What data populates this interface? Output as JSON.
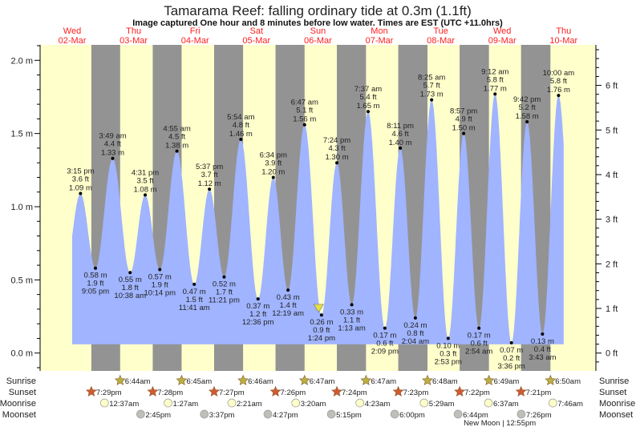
{
  "chart_data": {
    "type": "area",
    "title": "Tamarama Reef: falling  ordinary tide at 0.3m (1.1ft)",
    "subtitle": "Image captured One hour and 8 minutes before low water. Times are EST (UTC +11.0hrs)",
    "days": [
      {
        "dow": "Wed",
        "date": "02-Mar"
      },
      {
        "dow": "Thu",
        "date": "03-Mar"
      },
      {
        "dow": "Fri",
        "date": "04-Mar"
      },
      {
        "dow": "Sat",
        "date": "05-Mar"
      },
      {
        "dow": "Sun",
        "date": "06-Mar"
      },
      {
        "dow": "Mon",
        "date": "07-Mar"
      },
      {
        "dow": "Tue",
        "date": "08-Mar"
      },
      {
        "dow": "Wed",
        "date": "09-Mar"
      },
      {
        "dow": "Thu",
        "date": "10-Mar"
      }
    ],
    "y_axis_left": {
      "unit": "m",
      "ticks": [
        "0.0 m",
        "0.5 m",
        "1.0 m",
        "1.5 m",
        "2.0 m"
      ],
      "range": [
        -0.1,
        2.1
      ]
    },
    "y_axis_right": {
      "unit": "ft",
      "ticks": [
        "0 ft",
        "1 ft",
        "2 ft",
        "3 ft",
        "4 ft",
        "5 ft",
        "6 ft"
      ]
    },
    "curve_start": {
      "date": "02-Mar",
      "time": "12:00 pm",
      "m": 0.8
    },
    "curve_end": {
      "date": "10-Mar",
      "time": "12:00 pm",
      "m": 1.42
    },
    "curve_floor_m": 0.06,
    "extremes": [
      {
        "type": "high",
        "date": "02-Mar",
        "time": "3:15 pm",
        "ft": "3.6 ft",
        "m": 1.09
      },
      {
        "type": "low",
        "date": "02-Mar",
        "time": "9:05 pm",
        "ft": "1.9 ft",
        "m": 0.58
      },
      {
        "type": "high",
        "date": "03-Mar",
        "time": "3:49 am",
        "ft": "4.4 ft",
        "m": 1.33
      },
      {
        "type": "low",
        "date": "03-Mar",
        "time": "10:38 am",
        "ft": "1.8 ft",
        "m": 0.55
      },
      {
        "type": "high",
        "date": "03-Mar",
        "time": "4:31 pm",
        "ft": "3.5 ft",
        "m": 1.08
      },
      {
        "type": "low",
        "date": "03-Mar",
        "time": "10:14 pm",
        "ft": "1.9 ft",
        "m": 0.57
      },
      {
        "type": "high",
        "date": "04-Mar",
        "time": "4:55 am",
        "ft": "4.5 ft",
        "m": 1.38
      },
      {
        "type": "low",
        "date": "04-Mar",
        "time": "11:41 am",
        "ft": "1.5 ft",
        "m": 0.47
      },
      {
        "type": "high",
        "date": "04-Mar",
        "time": "5:37 pm",
        "ft": "3.7 ft",
        "m": 1.12
      },
      {
        "type": "low",
        "date": "04-Mar",
        "time": "11:21 pm",
        "ft": "1.7 ft",
        "m": 0.52
      },
      {
        "type": "high",
        "date": "05-Mar",
        "time": "5:54 am",
        "ft": "4.8 ft",
        "m": 1.46
      },
      {
        "type": "low",
        "date": "05-Mar",
        "time": "12:36 pm",
        "ft": "1.2 ft",
        "m": 0.37
      },
      {
        "type": "high",
        "date": "05-Mar",
        "time": "6:34 pm",
        "ft": "3.9 ft",
        "m": 1.2
      },
      {
        "type": "low",
        "date": "06-Mar",
        "time": "12:19 am",
        "ft": "1.4 ft",
        "m": 0.43
      },
      {
        "type": "high",
        "date": "06-Mar",
        "time": "6:47 am",
        "ft": "5.1 ft",
        "m": 1.56
      },
      {
        "type": "low",
        "date": "06-Mar",
        "time": "1:24 pm",
        "ft": "0.9 ft",
        "m": 0.26
      },
      {
        "type": "high",
        "date": "06-Mar",
        "time": "7:24 pm",
        "ft": "4.3 ft",
        "m": 1.3
      },
      {
        "type": "low",
        "date": "07-Mar",
        "time": "1:13 am",
        "ft": "1.1 ft",
        "m": 0.33
      },
      {
        "type": "high",
        "date": "07-Mar",
        "time": "7:37 am",
        "ft": "5.4 ft",
        "m": 1.65
      },
      {
        "type": "low",
        "date": "07-Mar",
        "time": "2:09 pm",
        "ft": "0.6 ft",
        "m": 0.17
      },
      {
        "type": "high",
        "date": "07-Mar",
        "time": "8:11 pm",
        "ft": "4.6 ft",
        "m": 1.4
      },
      {
        "type": "low",
        "date": "08-Mar",
        "time": "2:04 am",
        "ft": "0.8 ft",
        "m": 0.24
      },
      {
        "type": "high",
        "date": "08-Mar",
        "time": "8:25 am",
        "ft": "5.7 ft",
        "m": 1.73
      },
      {
        "type": "low",
        "date": "08-Mar",
        "time": "2:53 pm",
        "ft": "0.3 ft",
        "m": 0.1
      },
      {
        "type": "high",
        "date": "08-Mar",
        "time": "8:57 pm",
        "ft": "4.9 ft",
        "m": 1.5
      },
      {
        "type": "low",
        "date": "09-Mar",
        "time": "2:54 am",
        "ft": "0.6 ft",
        "m": 0.17
      },
      {
        "type": "high",
        "date": "09-Mar",
        "time": "9:12 am",
        "ft": "5.8 ft",
        "m": 1.77
      },
      {
        "type": "low",
        "date": "09-Mar",
        "time": "3:36 pm",
        "ft": "0.2 ft",
        "m": 0.07
      },
      {
        "type": "high",
        "date": "09-Mar",
        "time": "9:42 pm",
        "ft": "5.2 ft",
        "m": 1.58
      },
      {
        "type": "low",
        "date": "10-Mar",
        "time": "3:43 am",
        "ft": "0.4 ft",
        "m": 0.13
      },
      {
        "type": "high",
        "date": "10-Mar",
        "time": "10:00 am",
        "ft": "5.8 ft",
        "m": 1.76
      }
    ],
    "current": {
      "date": "06-Mar",
      "time": "12:16 pm",
      "m": 0.3,
      "marker": "yellow-triangle"
    },
    "rows": {
      "sunrise": {
        "label": "Sunrise",
        "events": [
          [
            "03-Mar",
            "6:44am"
          ],
          [
            "04-Mar",
            "6:45am"
          ],
          [
            "05-Mar",
            "6:46am"
          ],
          [
            "06-Mar",
            "6:47am"
          ],
          [
            "07-Mar",
            "6:47am"
          ],
          [
            "08-Mar",
            "6:48am"
          ],
          [
            "09-Mar",
            "6:49am"
          ],
          [
            "10-Mar",
            "6:50am"
          ]
        ]
      },
      "sunset": {
        "label": "Sunset",
        "events": [
          [
            "02-Mar",
            "7:29pm"
          ],
          [
            "03-Mar",
            "7:28pm"
          ],
          [
            "04-Mar",
            "7:27pm"
          ],
          [
            "05-Mar",
            "7:26pm"
          ],
          [
            "06-Mar",
            "7:24pm"
          ],
          [
            "07-Mar",
            "7:23pm"
          ],
          [
            "08-Mar",
            "7:22pm"
          ],
          [
            "09-Mar",
            "7:21pm"
          ]
        ]
      },
      "moonrise": {
        "label": "Moonrise",
        "events": [
          [
            "03-Mar",
            "12:37am"
          ],
          [
            "04-Mar",
            "1:27am"
          ],
          [
            "05-Mar",
            "2:21am"
          ],
          [
            "06-Mar",
            "3:20am"
          ],
          [
            "07-Mar",
            "4:23am"
          ],
          [
            "08-Mar",
            "5:29am"
          ],
          [
            "09-Mar",
            "6:37am"
          ],
          [
            "10-Mar",
            "7:46am"
          ]
        ]
      },
      "moonset": {
        "label": "Moonset",
        "events": [
          [
            "03-Mar",
            "2:45pm"
          ],
          [
            "04-Mar",
            "3:37pm"
          ],
          [
            "05-Mar",
            "4:27pm"
          ],
          [
            "06-Mar",
            "5:15pm"
          ],
          [
            "07-Mar",
            "6:00pm"
          ],
          [
            "08-Mar",
            "6:44pm"
          ],
          [
            "09-Mar",
            "7:26pm"
          ]
        ]
      }
    },
    "moon_phase": {
      "date": "09-Mar",
      "time": "12:55pm",
      "text": "New Moon | 12:55pm"
    },
    "colors": {
      "day": "#ffffcc",
      "night": "#939393",
      "water": "#a0b4ff",
      "day_label": "#ff2020",
      "sunrise": "#b8b040",
      "sunset": "#d05a30",
      "moonrise": "#ffffc8",
      "moonset": "#c0beb8",
      "marker": "#e8e040"
    }
  }
}
